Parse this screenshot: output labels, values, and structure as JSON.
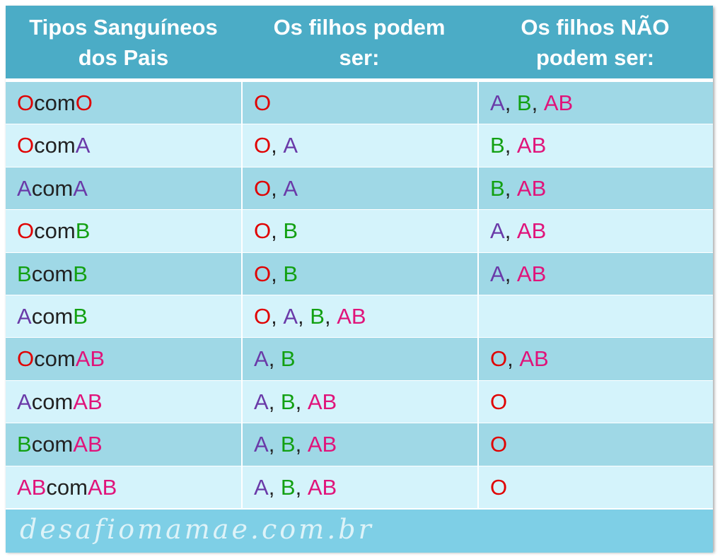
{
  "colors": {
    "header_bg": "#4bacc6",
    "row_dark": "#9fd8e6",
    "row_light": "#d4f3fb",
    "O": "#e00000",
    "A": "#6a3aa8",
    "B": "#12a012",
    "AB": "#e0137a"
  },
  "header": {
    "col1_line1": "Tipos Sanguíneos",
    "col1_line2": "dos Pais",
    "col2_line1": "Os filhos podem",
    "col2_line2": "ser:",
    "col3_line1": "Os filhos NÃO",
    "col3_line2": "podem ser:"
  },
  "rows": [
    {
      "parents": [
        "O",
        "com",
        "O"
      ],
      "can": [
        "O"
      ],
      "cannot": [
        "A",
        "B",
        "AB"
      ]
    },
    {
      "parents": [
        "O",
        "com",
        "A"
      ],
      "can": [
        "O",
        "A"
      ],
      "cannot": [
        "B",
        "AB"
      ]
    },
    {
      "parents": [
        "A",
        "com",
        "A"
      ],
      "can": [
        "O",
        "A"
      ],
      "cannot": [
        "B",
        "AB"
      ]
    },
    {
      "parents": [
        "O",
        "com",
        "B"
      ],
      "can": [
        "O",
        "B"
      ],
      "cannot": [
        "A",
        "AB"
      ]
    },
    {
      "parents": [
        "B",
        "com",
        "B"
      ],
      "can": [
        "O",
        "B"
      ],
      "cannot": [
        "A",
        "AB"
      ]
    },
    {
      "parents": [
        "A",
        "com",
        "B"
      ],
      "can": [
        "O",
        "A",
        "B",
        "AB"
      ],
      "cannot": []
    },
    {
      "parents": [
        "O",
        "com",
        "AB"
      ],
      "can": [
        "A",
        "B"
      ],
      "cannot": [
        "O",
        "AB"
      ]
    },
    {
      "parents": [
        "A",
        "com",
        "AB"
      ],
      "can": [
        "A",
        "B",
        "AB"
      ],
      "cannot": [
        "O"
      ]
    },
    {
      "parents": [
        "B",
        "com",
        "AB"
      ],
      "can": [
        "A",
        "B",
        "AB"
      ],
      "cannot": [
        "O"
      ]
    },
    {
      "parents": [
        "AB",
        "com",
        "AB"
      ],
      "can": [
        "A",
        "B",
        "AB"
      ],
      "cannot": [
        "O"
      ]
    }
  ],
  "footer": {
    "watermark": "desafiomamae.com.br"
  }
}
